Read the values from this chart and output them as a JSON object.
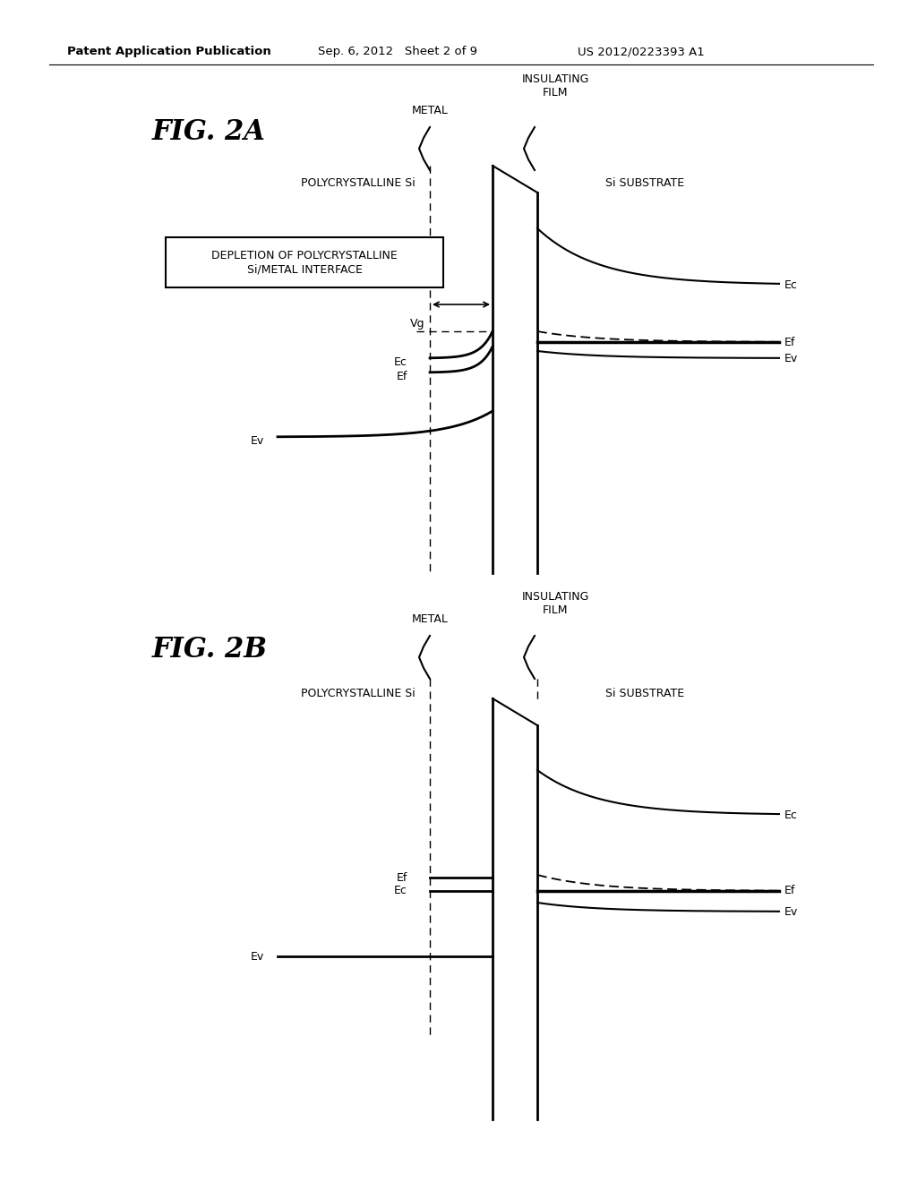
{
  "bg_color": "#ffffff",
  "header_left": "Patent Application Publication",
  "header_center": "Sep. 6, 2012   Sheet 2 of 9",
  "header_right": "US 2012/0223393 A1",
  "fig_title_2a": "FIG. 2A",
  "fig_title_2b": "FIG. 2B",
  "label_metal": "METAL",
  "label_insulating_film": "INSULATING\nFILM",
  "label_poly_si": "POLYCRYSTALLINE Si",
  "label_si_substrate": "Si SUBSTRATE",
  "label_depletion_box": "DEPLETION OF POLYCRYSTALLINE\nSi/METAL INTERFACE",
  "text_color": "#000000",
  "line_color": "#000000"
}
